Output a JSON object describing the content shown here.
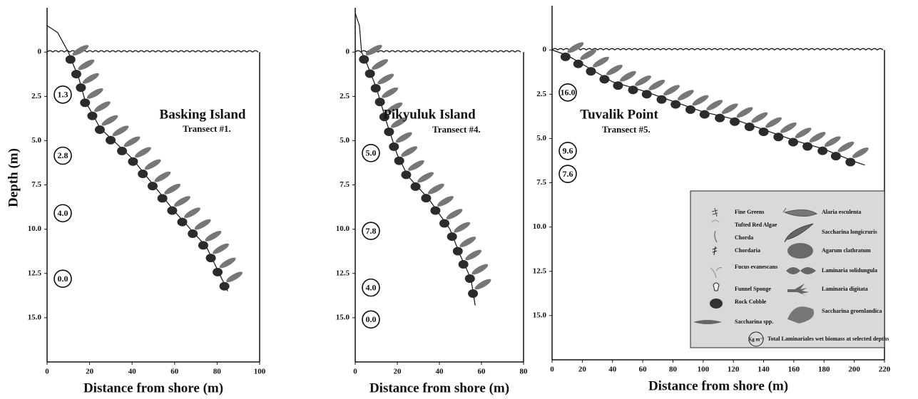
{
  "chart_data": [
    {
      "type": "line",
      "title": "Basking Island",
      "subtitle": "Transect #1.",
      "x_label": "Distance from shore (m)",
      "y_label": "Depth (m)",
      "x": [
        0,
        5,
        10,
        15,
        18,
        20,
        25,
        40,
        60,
        75,
        85
      ],
      "values": [
        -1.5,
        -1.1,
        0,
        1.5,
        2.8,
        3.2,
        4.3,
        6,
        9,
        11,
        13.5
      ],
      "xlim": [
        0,
        100
      ],
      "xticks": [
        0,
        20,
        40,
        60,
        80,
        100
      ],
      "ylim": [
        -2.5,
        17.5
      ],
      "y_inverted": true,
      "yticks": [
        0,
        2.5,
        {
          "value": 5,
          "label": "5.0"
        },
        7.5,
        {
          "value": 10,
          "label": "10.0"
        },
        12.5,
        {
          "value": 15,
          "label": "15.0"
        }
      ],
      "biomass": {
        "depths": [
          2.4,
          5.85,
          9.1,
          12.8
        ],
        "values": [
          1.3,
          2.8,
          4.0,
          0
        ],
        "value_labels": [
          "1.3",
          "2.8",
          "4.0",
          "0.0"
        ]
      }
    },
    {
      "type": "line",
      "title": "Pikyuluk Island",
      "subtitle": "Transect #4.",
      "x_label": "Distance from shore (m)",
      "x": [
        0,
        2,
        3,
        5,
        10,
        15,
        20,
        25,
        35,
        45,
        50,
        55,
        57
      ],
      "values": [
        -2.2,
        -1.5,
        0,
        0.5,
        2,
        4,
        5.8,
        7,
        8.3,
        10,
        11.5,
        12.8,
        14.3
      ],
      "xlim": [
        0,
        80
      ],
      "xticks": [
        0,
        20,
        40,
        60,
        80
      ],
      "ylim": [
        -2.5,
        17.5
      ],
      "y_inverted": true,
      "yticks": [
        0,
        2.5,
        {
          "value": 5,
          "label": "5.0"
        },
        7.5,
        {
          "value": 10,
          "label": "10.0"
        },
        12.5,
        {
          "value": 15,
          "label": "15.0"
        }
      ],
      "biomass": {
        "depths": [
          5.7,
          10.1,
          13.3,
          15.1
        ],
        "values": [
          5.0,
          7.8,
          4.0,
          0
        ],
        "value_labels": [
          "5.0",
          "7.8",
          "4.0",
          "0.0"
        ]
      }
    },
    {
      "type": "line",
      "title": "Tuvalik Point",
      "subtitle": "Transect #5.",
      "x_label": "Distance from shore (m)",
      "x": [
        0,
        10,
        20,
        40,
        60,
        80,
        100,
        120,
        140,
        160,
        180,
        200,
        207
      ],
      "values": [
        0,
        0.3,
        0.8,
        1.8,
        2.3,
        2.9,
        3.5,
        3.9,
        4.5,
        5.1,
        5.6,
        6.3,
        6.5
      ],
      "xlim": [
        0,
        220
      ],
      "xticks": [
        0,
        20,
        40,
        60,
        80,
        100,
        120,
        140,
        160,
        180,
        200,
        220
      ],
      "ylim": [
        -2.5,
        17.5
      ],
      "y_inverted": true,
      "yticks": [
        0,
        2.5,
        {
          "value": 5,
          "label": "5.0"
        },
        7.5,
        {
          "value": 10,
          "label": "10.0"
        },
        12.5,
        {
          "value": 15,
          "label": "15.0"
        }
      ],
      "biomass": {
        "depths": [
          2.4,
          5.7,
          7.0
        ],
        "values": [
          16.0,
          9.6,
          7.6
        ],
        "value_labels": [
          "16.0",
          "9.6",
          "7.6"
        ]
      }
    }
  ],
  "legend": {
    "left": [
      "Fine Greens",
      "Tufted Red Algae",
      "Chorda",
      "Chordaria",
      "Fucus evanescans",
      "Funnel Sponge",
      "Rock Cobble",
      "Saccharina spp."
    ],
    "right": [
      "Alaria esculenta",
      "Saccharina longicruris",
      "Agarum clathratum",
      "Laminaria solidungula",
      "Laminaria digitata",
      "Saccharina groenlandica"
    ],
    "biomass_symbol": "Kg m⁻²",
    "biomass_text": "Total Laminariales wet biomass at selected depths"
  }
}
